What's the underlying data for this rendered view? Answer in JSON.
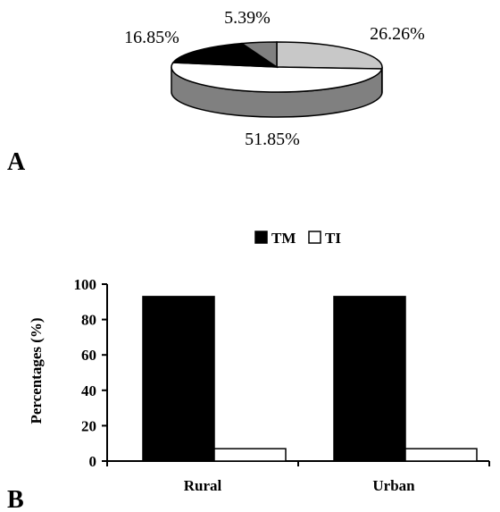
{
  "chart_data": [
    {
      "panel_label": "A",
      "type": "pie",
      "three_d": true,
      "slices": [
        {
          "label": "26.26%",
          "value": 26.26,
          "color": "#c8c8c8"
        },
        {
          "label": "51.85%",
          "value": 51.85,
          "color": "#ffffff"
        },
        {
          "label": "16.85%",
          "value": 16.85,
          "color": "#000000"
        },
        {
          "label": "5.39%",
          "value": 5.39,
          "color": "#808080"
        }
      ]
    },
    {
      "panel_label": "B",
      "type": "bar",
      "categories": [
        "Rural",
        "Urban"
      ],
      "series": [
        {
          "name": "TM",
          "values": [
            93,
            93
          ],
          "color": "#000000"
        },
        {
          "name": "TI",
          "values": [
            7,
            7
          ],
          "color": "#ffffff"
        }
      ],
      "ylabel": "Percentages (%)",
      "ylim": [
        0,
        100
      ],
      "yticks": [
        0,
        20,
        40,
        60,
        80,
        100
      ],
      "legend": "top",
      "grid": false
    }
  ]
}
